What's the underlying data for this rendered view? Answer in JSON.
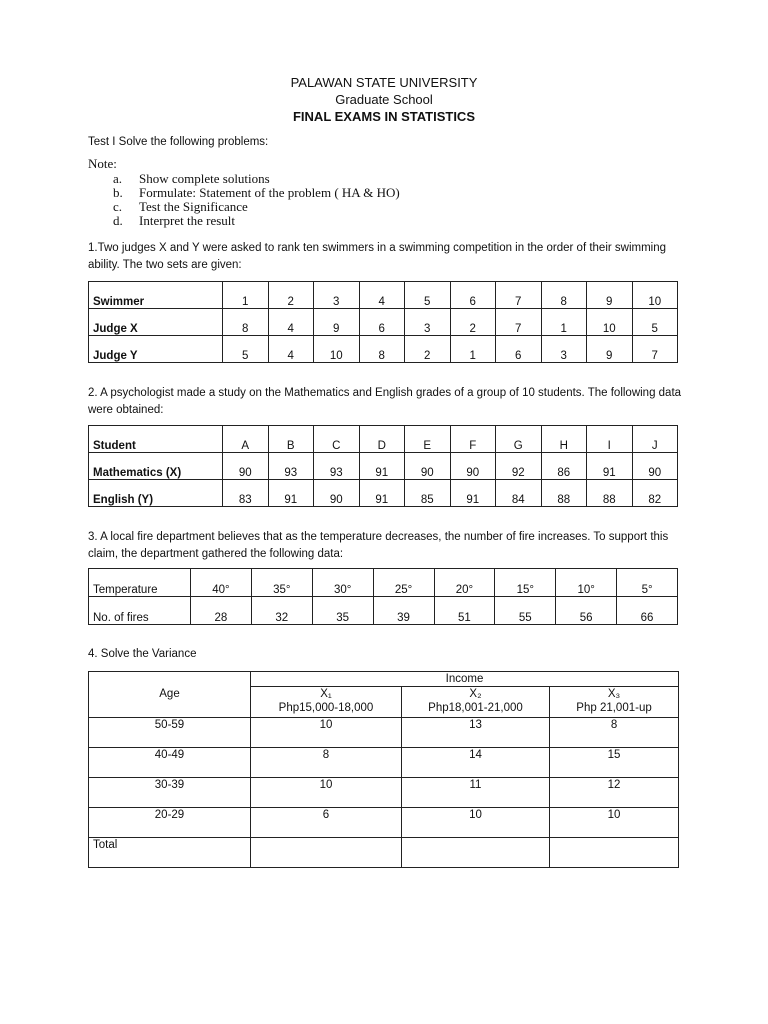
{
  "header": {
    "university": "PALAWAN STATE UNIVERSITY",
    "school": "Graduate School",
    "title": "FINAL EXAMS IN STATISTICS"
  },
  "test": "Test I Solve the following problems:",
  "note": {
    "label": "Note:",
    "items": [
      {
        "letter": "a.",
        "text": "Show complete solutions"
      },
      {
        "letter": "b.",
        "text": "Formulate: Statement of the problem ( HA & HO)"
      },
      {
        "letter": "c.",
        "text": "Test the Significance"
      },
      {
        "letter": "d.",
        "text": "Interpret the result"
      }
    ]
  },
  "q1": {
    "text": "1.Two judges X and Y were asked to rank ten swimmers in a swimming competition in the order of their swimming ability. The two sets are given:",
    "rows": [
      [
        "Swimmer",
        "1",
        "2",
        "3",
        "4",
        "5",
        "6",
        "7",
        "8",
        "9",
        "10"
      ],
      [
        "Judge X",
        "8",
        "4",
        "9",
        "6",
        "3",
        "2",
        "7",
        "1",
        "10",
        "5"
      ],
      [
        "Judge Y",
        "5",
        "4",
        "10",
        "8",
        "2",
        "1",
        "6",
        "3",
        "9",
        "7"
      ]
    ]
  },
  "q2": {
    "text": "2. A psychologist made a study on the Mathematics and English grades of a group of 10 students. The following data were obtained:",
    "rows": [
      [
        "Student",
        "A",
        "B",
        "C",
        "D",
        "E",
        "F",
        "G",
        "H",
        "I",
        "J"
      ],
      [
        "Mathematics (X)",
        "90",
        "93",
        "93",
        "91",
        "90",
        "90",
        "92",
        "86",
        "91",
        "90"
      ],
      [
        "English (Y)",
        "83",
        "91",
        "90",
        "91",
        "85",
        "91",
        "84",
        "88",
        "88",
        "82"
      ]
    ]
  },
  "q3": {
    "text": "3. A local fire department believes that as the temperature decreases, the number of fire increases. To support this claim, the department gathered the following data:",
    "rows": [
      [
        "Temperature",
        "40°",
        "35°",
        "30°",
        "25°",
        "20°",
        "15°",
        "10°",
        "5°"
      ],
      [
        "No. of fires",
        "28",
        "32",
        "35",
        "39",
        "51",
        "55",
        "56",
        "66"
      ]
    ]
  },
  "q4": {
    "text": "4. Solve the Variance",
    "income": "Income",
    "age": "Age",
    "cols": [
      {
        "x": "X₁",
        "range": "Php15,000-18,000"
      },
      {
        "x": "X₂",
        "range": "Php18,001-21,000"
      },
      {
        "x": "X₃",
        "range": "Php 21,001-up"
      }
    ],
    "rows": [
      [
        "50-59",
        "10",
        "13",
        "8"
      ],
      [
        "40-49",
        "8",
        "14",
        "15"
      ],
      [
        "30-39",
        "10",
        "11",
        "12"
      ],
      [
        "20-29",
        "6",
        "10",
        "10"
      ],
      [
        "Total",
        "",
        "",
        ""
      ]
    ]
  }
}
